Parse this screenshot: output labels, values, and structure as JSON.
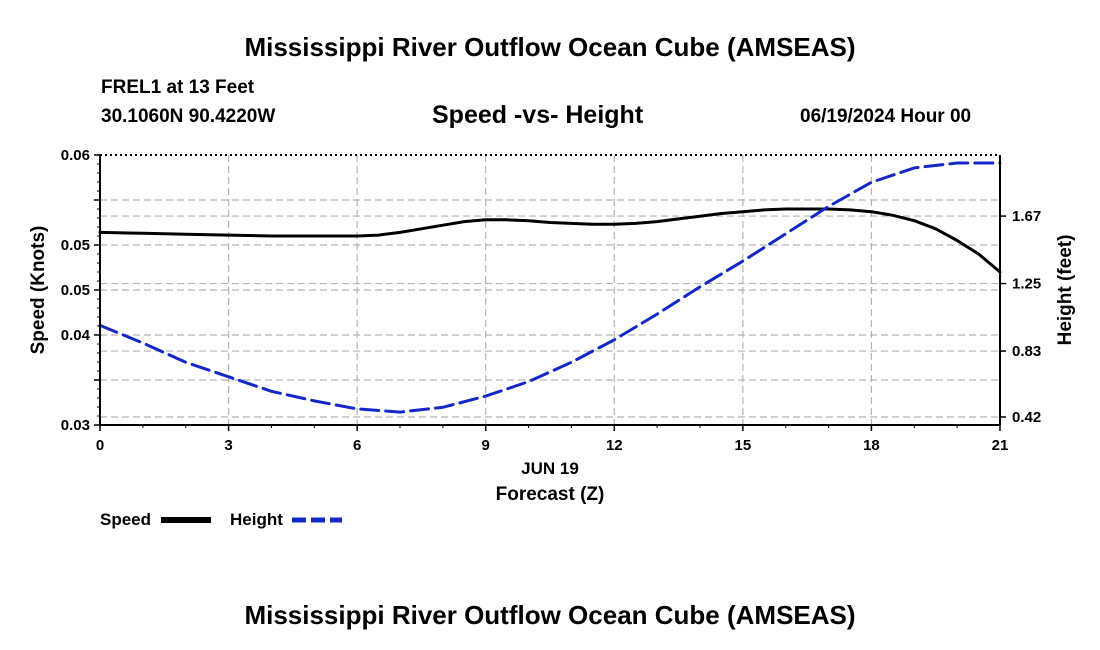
{
  "page": {
    "title_top": "Mississippi River Outflow Ocean Cube (AMSEAS)",
    "title_bottom": "Mississippi River Outflow Ocean Cube (AMSEAS)",
    "station": "FREL1 at 13 Feet",
    "coords": "30.1060N  90.4220W",
    "datetime": "06/19/2024 Hour 00"
  },
  "legend": {
    "speed": "Speed",
    "height": "Height"
  },
  "colors": {
    "speed": "#000000",
    "height": "#1428c8",
    "grid": "#b4b4b4"
  },
  "chart_data": {
    "type": "line",
    "title": "Speed -vs- Height",
    "xlabel": "Forecast (Z)",
    "xlabel_date": "JUN 19",
    "ylabel_left": "Speed (Knots)",
    "ylabel_right": "Height (feet)",
    "x_ticks": [
      0,
      3,
      6,
      9,
      12,
      15,
      18,
      21
    ],
    "x_tick_labels": [
      "0",
      "3",
      "6",
      "9",
      "12",
      "15",
      "18",
      "21"
    ],
    "xlim": [
      0,
      21
    ],
    "y_left_ticks": [
      0.03,
      0.035,
      0.04,
      0.045,
      0.05,
      0.055,
      0.06
    ],
    "y_left_tick_labels": [
      "0.03",
      "",
      "0.04",
      "0.05",
      "0.05",
      "",
      "0.06"
    ],
    "ylim_left": [
      0.03,
      0.06
    ],
    "y_right_ticks": [
      0.42,
      0.83,
      1.25,
      1.67
    ],
    "y_right_tick_labels": [
      "0.42",
      "0.83",
      "1.25",
      "1.67"
    ],
    "ylim_right": [
      0.37,
      2.05
    ],
    "series": [
      {
        "name": "Speed",
        "axis": "left",
        "style": "solid",
        "x": [
          0,
          1,
          2,
          3,
          4,
          5,
          6,
          6.5,
          7,
          7.5,
          8,
          8.5,
          9,
          9.5,
          10,
          10.5,
          11,
          11.5,
          12,
          12.5,
          13,
          13.5,
          14,
          14.5,
          15,
          15.5,
          16,
          16.5,
          17,
          17.5,
          18,
          18.5,
          19,
          19.5,
          20,
          20.5,
          21
        ],
        "values": [
          0.0514,
          0.0513,
          0.0512,
          0.0511,
          0.051,
          0.051,
          0.051,
          0.0511,
          0.0514,
          0.0518,
          0.0522,
          0.0526,
          0.0528,
          0.0528,
          0.0527,
          0.0525,
          0.0524,
          0.0523,
          0.0523,
          0.0524,
          0.0526,
          0.0529,
          0.0532,
          0.0535,
          0.0537,
          0.0539,
          0.054,
          0.054,
          0.054,
          0.0539,
          0.0537,
          0.0533,
          0.0527,
          0.0518,
          0.0505,
          0.049,
          0.047
        ]
      },
      {
        "name": "Height",
        "axis": "right",
        "style": "dashed",
        "x": [
          0,
          1,
          2,
          3,
          4,
          5,
          6,
          7,
          8,
          9,
          10,
          11,
          12,
          13,
          14,
          15,
          16,
          17,
          18,
          19,
          20,
          21
        ],
        "values": [
          0.99,
          0.88,
          0.76,
          0.67,
          0.58,
          0.52,
          0.47,
          0.45,
          0.48,
          0.55,
          0.64,
          0.76,
          0.9,
          1.06,
          1.23,
          1.39,
          1.56,
          1.73,
          1.88,
          1.97,
          2.0,
          2.0
        ]
      }
    ]
  }
}
